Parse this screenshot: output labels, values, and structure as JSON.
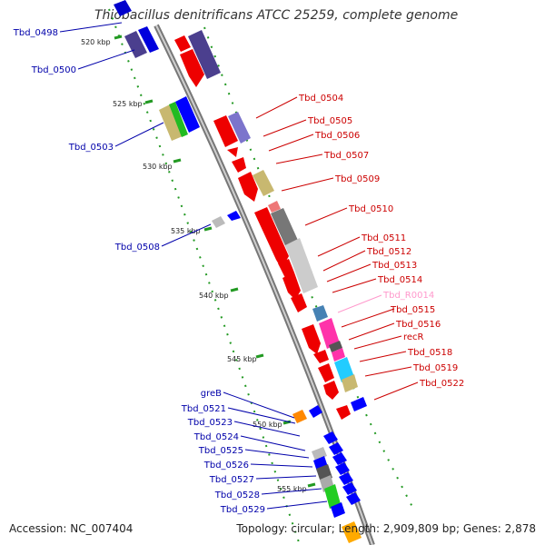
{
  "title": "Thiobacillus denitrificans ATCC 25259, complete genome",
  "footer": {
    "accession": "Accession: NC_007404",
    "topology": "Topology: circular; Length: 2,909,809 bp; Genes: 2,878"
  },
  "colors": {
    "backbone": "#9a9a9a",
    "forward_label": "#cc0000",
    "reverse_label": "#0000aa",
    "rna_label": "#ff99cc",
    "ticks": "#229922"
  },
  "kbp_marks": [
    "520 kbp",
    "525 kbp",
    "530 kbp",
    "535 kbp",
    "540 kbp",
    "545 kbp",
    "550 kbp",
    "555 kbp"
  ],
  "left_genes": [
    "Tbd_0498",
    "Tbd_0500",
    "Tbd_0503",
    "Tbd_0508",
    "greB",
    "Tbd_0521",
    "Tbd_0523",
    "Tbd_0524",
    "Tbd_0525",
    "Tbd_0526",
    "Tbd_0527",
    "Tbd_0528",
    "Tbd_0529"
  ],
  "right_genes": [
    "Tbd_0504",
    "Tbd_0505",
    "Tbd_0506",
    "Tbd_0507",
    "Tbd_0509",
    "Tbd_0510",
    "Tbd_0511",
    "Tbd_0512",
    "Tbd_0513",
    "Tbd_0514",
    "Tbd_R0014",
    "Tbd_0515",
    "Tbd_0516",
    "recR",
    "Tbd_0518",
    "Tbd_0519",
    "Tbd_0522"
  ]
}
